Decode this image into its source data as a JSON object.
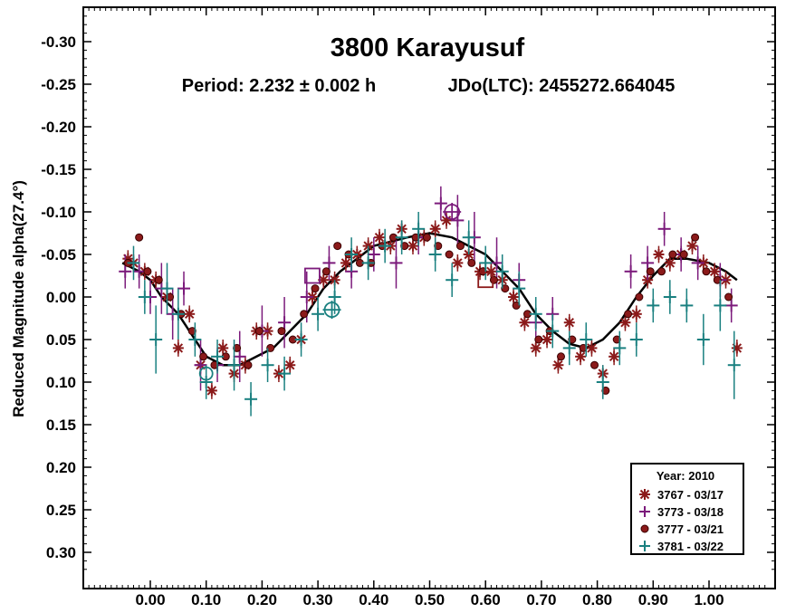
{
  "chart_data": {
    "type": "scatter",
    "title": "3800 Karayusuf",
    "subtitle_period": "Period: 2.232 ± 0.002 h",
    "subtitle_epoch": "JDo(LTC): 2455272.664045",
    "xlabel": "",
    "ylabel": "Reduced Magnitude alpha(27.4°)",
    "xlim": [
      -0.12,
      1.12
    ],
    "ylim": [
      -0.34,
      0.34
    ],
    "y_inverted": true,
    "x_ticks": [
      "0.00",
      "0.10",
      "0.20",
      "0.30",
      "0.40",
      "0.50",
      "0.60",
      "0.70",
      "0.80",
      "0.90",
      "1.00"
    ],
    "x_tick_values": [
      0,
      0.1,
      0.2,
      0.3,
      0.4,
      0.5,
      0.6,
      0.7,
      0.8,
      0.9,
      1.0
    ],
    "y_ticks": [
      "-0.30",
      "-0.25",
      "-0.20",
      "-0.15",
      "-0.10",
      "-0.05",
      "0.00",
      "0.05",
      "0.10",
      "0.15",
      "0.20",
      "0.25",
      "0.30"
    ],
    "y_tick_values": [
      -0.3,
      -0.25,
      -0.2,
      -0.15,
      -0.1,
      -0.05,
      0,
      0.05,
      0.1,
      0.15,
      0.2,
      0.25,
      0.3
    ],
    "grid": false,
    "legend": {
      "placement": "bottom-right",
      "title": "Year: 2010",
      "entries": [
        "3767 - 03/17",
        "3773 - 03/18",
        "3777 - 03/21",
        "3781 - 03/22"
      ]
    },
    "fit_curve": {
      "x": [
        -0.05,
        -0.02,
        0.0,
        0.02,
        0.05,
        0.08,
        0.1,
        0.13,
        0.16,
        0.19,
        0.22,
        0.25,
        0.28,
        0.31,
        0.34,
        0.37,
        0.4,
        0.43,
        0.46,
        0.5,
        0.54,
        0.57,
        0.6,
        0.63,
        0.66,
        0.69,
        0.72,
        0.75,
        0.78,
        0.81,
        0.84,
        0.87,
        0.9,
        0.93,
        0.96,
        1.0,
        1.03,
        1.05
      ],
      "y": [
        -0.04,
        -0.03,
        -0.02,
        0.0,
        0.02,
        0.05,
        0.07,
        0.08,
        0.08,
        0.07,
        0.06,
        0.04,
        0.02,
        -0.01,
        -0.03,
        -0.045,
        -0.06,
        -0.065,
        -0.07,
        -0.075,
        -0.07,
        -0.06,
        -0.05,
        -0.03,
        -0.01,
        0.02,
        0.04,
        0.055,
        0.06,
        0.05,
        0.03,
        0.0,
        -0.025,
        -0.045,
        -0.045,
        -0.04,
        -0.03,
        -0.02
      ]
    },
    "series": [
      {
        "name": "3767 - 03/17",
        "color": "#8b1a1a",
        "marker": "asterisk",
        "x": [
          -0.04,
          -0.03,
          -0.01,
          0.01,
          0.03,
          0.05,
          0.07,
          0.09,
          0.11,
          0.13,
          0.15,
          0.17,
          0.19,
          0.21,
          0.23,
          0.25,
          0.27,
          0.29,
          0.31,
          0.33,
          0.35,
          0.37,
          0.39,
          0.41,
          0.43,
          0.45,
          0.47,
          0.49,
          0.51,
          0.53,
          0.55,
          0.57,
          0.59,
          0.61,
          0.63,
          0.65,
          0.67,
          0.69,
          0.71,
          0.73,
          0.75,
          0.77,
          0.79,
          0.81,
          0.83,
          0.85,
          0.87,
          0.89,
          0.91,
          0.93,
          0.95,
          0.97,
          0.99,
          1.01,
          1.03,
          1.05
        ],
        "y": [
          -0.045,
          -0.04,
          -0.03,
          -0.02,
          0.0,
          0.06,
          0.02,
          0.08,
          0.11,
          0.06,
          0.09,
          0.08,
          0.04,
          0.04,
          0.09,
          0.08,
          0.05,
          0.0,
          -0.02,
          -0.02,
          -0.04,
          -0.05,
          -0.06,
          -0.07,
          -0.06,
          -0.08,
          -0.06,
          -0.07,
          -0.08,
          -0.09,
          -0.04,
          -0.05,
          -0.03,
          -0.03,
          -0.02,
          0.0,
          0.03,
          0.06,
          0.05,
          0.08,
          0.03,
          0.07,
          0.06,
          0.09,
          0.07,
          0.03,
          0.02,
          -0.02,
          -0.05,
          -0.04,
          -0.05,
          -0.06,
          -0.04,
          -0.03,
          -0.02,
          0.06
        ],
        "yerr": [
          0.01,
          0.01,
          0.01,
          0.01,
          0.01,
          0.01,
          0.01,
          0.01,
          0.01,
          0.01,
          0.01,
          0.01,
          0.01,
          0.01,
          0.01,
          0.01,
          0.01,
          0.01,
          0.01,
          0.01,
          0.01,
          0.01,
          0.01,
          0.01,
          0.01,
          0.01,
          0.01,
          0.01,
          0.01,
          0.01,
          0.01,
          0.01,
          0.01,
          0.01,
          0.01,
          0.01,
          0.01,
          0.01,
          0.01,
          0.01,
          0.01,
          0.01,
          0.01,
          0.01,
          0.01,
          0.01,
          0.01,
          0.01,
          0.01,
          0.01,
          0.01,
          0.01,
          0.01,
          0.01,
          0.01,
          0.01
        ]
      },
      {
        "name": "3773 - 03/18",
        "color": "#7b1a7b",
        "marker": "plus",
        "x": [
          -0.045,
          -0.02,
          0.0,
          0.02,
          0.04,
          0.06,
          0.09,
          0.12,
          0.16,
          0.2,
          0.24,
          0.28,
          0.32,
          0.36,
          0.4,
          0.44,
          0.48,
          0.52,
          0.55,
          0.58,
          0.62,
          0.66,
          0.69,
          0.72,
          0.86,
          0.89,
          0.92,
          0.95,
          0.98,
          1.02,
          1.04
        ],
        "y": [
          -0.03,
          -0.03,
          0.0,
          -0.01,
          0.02,
          -0.01,
          0.08,
          0.08,
          0.07,
          0.04,
          0.03,
          0.0,
          -0.04,
          -0.03,
          -0.05,
          -0.04,
          -0.07,
          -0.11,
          -0.09,
          -0.07,
          -0.04,
          -0.02,
          0.03,
          0.02,
          -0.03,
          -0.04,
          -0.08,
          -0.05,
          -0.04,
          -0.02,
          0.01
        ],
        "yerr": [
          0.02,
          0.02,
          0.02,
          0.03,
          0.03,
          0.02,
          0.03,
          0.02,
          0.03,
          0.03,
          0.03,
          0.03,
          0.02,
          0.02,
          0.02,
          0.03,
          0.02,
          0.02,
          0.03,
          0.03,
          0.03,
          0.02,
          0.02,
          0.02,
          0.02,
          0.02,
          0.02,
          0.02,
          0.02,
          0.02,
          0.02
        ]
      },
      {
        "name": "3777 - 03/21",
        "color": "#8b1a1a",
        "marker": "dot",
        "x": [
          -0.04,
          -0.02,
          -0.005,
          0.015,
          0.035,
          0.055,
          0.075,
          0.095,
          0.115,
          0.135,
          0.155,
          0.175,
          0.195,
          0.215,
          0.235,
          0.255,
          0.275,
          0.295,
          0.315,
          0.335,
          0.355,
          0.375,
          0.395,
          0.415,
          0.435,
          0.455,
          0.475,
          0.495,
          0.515,
          0.535,
          0.555,
          0.575,
          0.595,
          0.615,
          0.635,
          0.655,
          0.675,
          0.695,
          0.715,
          0.735,
          0.755,
          0.775,
          0.795,
          0.815,
          0.835,
          0.855,
          0.875,
          0.895,
          0.915,
          0.935,
          0.955,
          0.975,
          0.995,
          1.015,
          1.035
        ],
        "y": [
          -0.04,
          -0.07,
          -0.03,
          -0.02,
          0.0,
          0.02,
          0.04,
          0.07,
          0.08,
          0.07,
          0.06,
          0.08,
          0.04,
          0.06,
          0.04,
          0.05,
          0.02,
          -0.01,
          -0.03,
          -0.06,
          -0.05,
          -0.04,
          -0.04,
          -0.06,
          -0.07,
          -0.06,
          -0.07,
          -0.07,
          -0.06,
          -0.05,
          -0.06,
          -0.04,
          -0.03,
          -0.02,
          -0.01,
          0.01,
          0.02,
          0.05,
          0.04,
          0.07,
          0.05,
          0.06,
          0.08,
          0.11,
          0.05,
          0.02,
          0.0,
          -0.03,
          -0.03,
          -0.05,
          -0.05,
          -0.07,
          -0.03,
          -0.02,
          0.0
        ],
        "yerr": [
          0.005,
          0.005,
          0.005,
          0.005,
          0.005,
          0.005,
          0.005,
          0.005,
          0.005,
          0.005,
          0.005,
          0.005,
          0.005,
          0.005,
          0.005,
          0.005,
          0.005,
          0.005,
          0.005,
          0.005,
          0.005,
          0.005,
          0.005,
          0.005,
          0.005,
          0.005,
          0.005,
          0.005,
          0.005,
          0.005,
          0.005,
          0.005,
          0.005,
          0.005,
          0.005,
          0.005,
          0.005,
          0.005,
          0.005,
          0.005,
          0.005,
          0.005,
          0.005,
          0.005,
          0.005,
          0.005,
          0.005,
          0.005,
          0.005,
          0.005,
          0.005,
          0.005,
          0.005,
          0.005,
          0.005
        ]
      },
      {
        "name": "3781 - 03/22",
        "color": "#1a8080",
        "marker": "plus",
        "x": [
          -0.03,
          -0.01,
          0.01,
          0.03,
          0.05,
          0.08,
          0.1,
          0.12,
          0.15,
          0.18,
          0.21,
          0.24,
          0.27,
          0.3,
          0.33,
          0.36,
          0.39,
          0.42,
          0.45,
          0.48,
          0.51,
          0.54,
          0.57,
          0.6,
          0.63,
          0.66,
          0.69,
          0.72,
          0.75,
          0.78,
          0.81,
          0.84,
          0.87,
          0.9,
          0.93,
          0.96,
          0.99,
          1.02,
          1.045
        ],
        "y": [
          -0.04,
          0.0,
          0.05,
          -0.01,
          0.02,
          0.05,
          0.1,
          0.07,
          0.08,
          0.12,
          0.08,
          0.09,
          0.05,
          0.02,
          0.0,
          -0.05,
          -0.04,
          -0.06,
          -0.07,
          -0.08,
          -0.05,
          -0.02,
          -0.07,
          -0.04,
          -0.03,
          -0.01,
          0.02,
          0.04,
          0.06,
          0.05,
          0.1,
          0.06,
          0.05,
          0.01,
          0.0,
          0.01,
          0.05,
          0.01,
          0.08
        ],
        "yerr": [
          0.02,
          0.02,
          0.04,
          0.03,
          0.03,
          0.02,
          0.02,
          0.02,
          0.03,
          0.02,
          0.02,
          0.02,
          0.02,
          0.02,
          0.02,
          0.02,
          0.02,
          0.02,
          0.02,
          0.02,
          0.02,
          0.02,
          0.02,
          0.02,
          0.02,
          0.02,
          0.02,
          0.02,
          0.02,
          0.02,
          0.02,
          0.02,
          0.02,
          0.02,
          0.02,
          0.02,
          0.03,
          0.03,
          0.04
        ]
      }
    ],
    "highlighted_points": [
      {
        "x": 0.29,
        "y": -0.025,
        "shape": "square",
        "color": "#7b1a7b"
      },
      {
        "x": 0.325,
        "y": 0.015,
        "shape": "circle-plus",
        "color": "#1a8080"
      },
      {
        "x": 0.54,
        "y": -0.1,
        "shape": "circle-plus",
        "color": "#7b1a7b"
      },
      {
        "x": 0.6,
        "y": -0.02,
        "shape": "square",
        "color": "#8b1a1a"
      },
      {
        "x": 0.1,
        "y": 0.09,
        "shape": "circle",
        "color": "#1a8080"
      }
    ]
  }
}
